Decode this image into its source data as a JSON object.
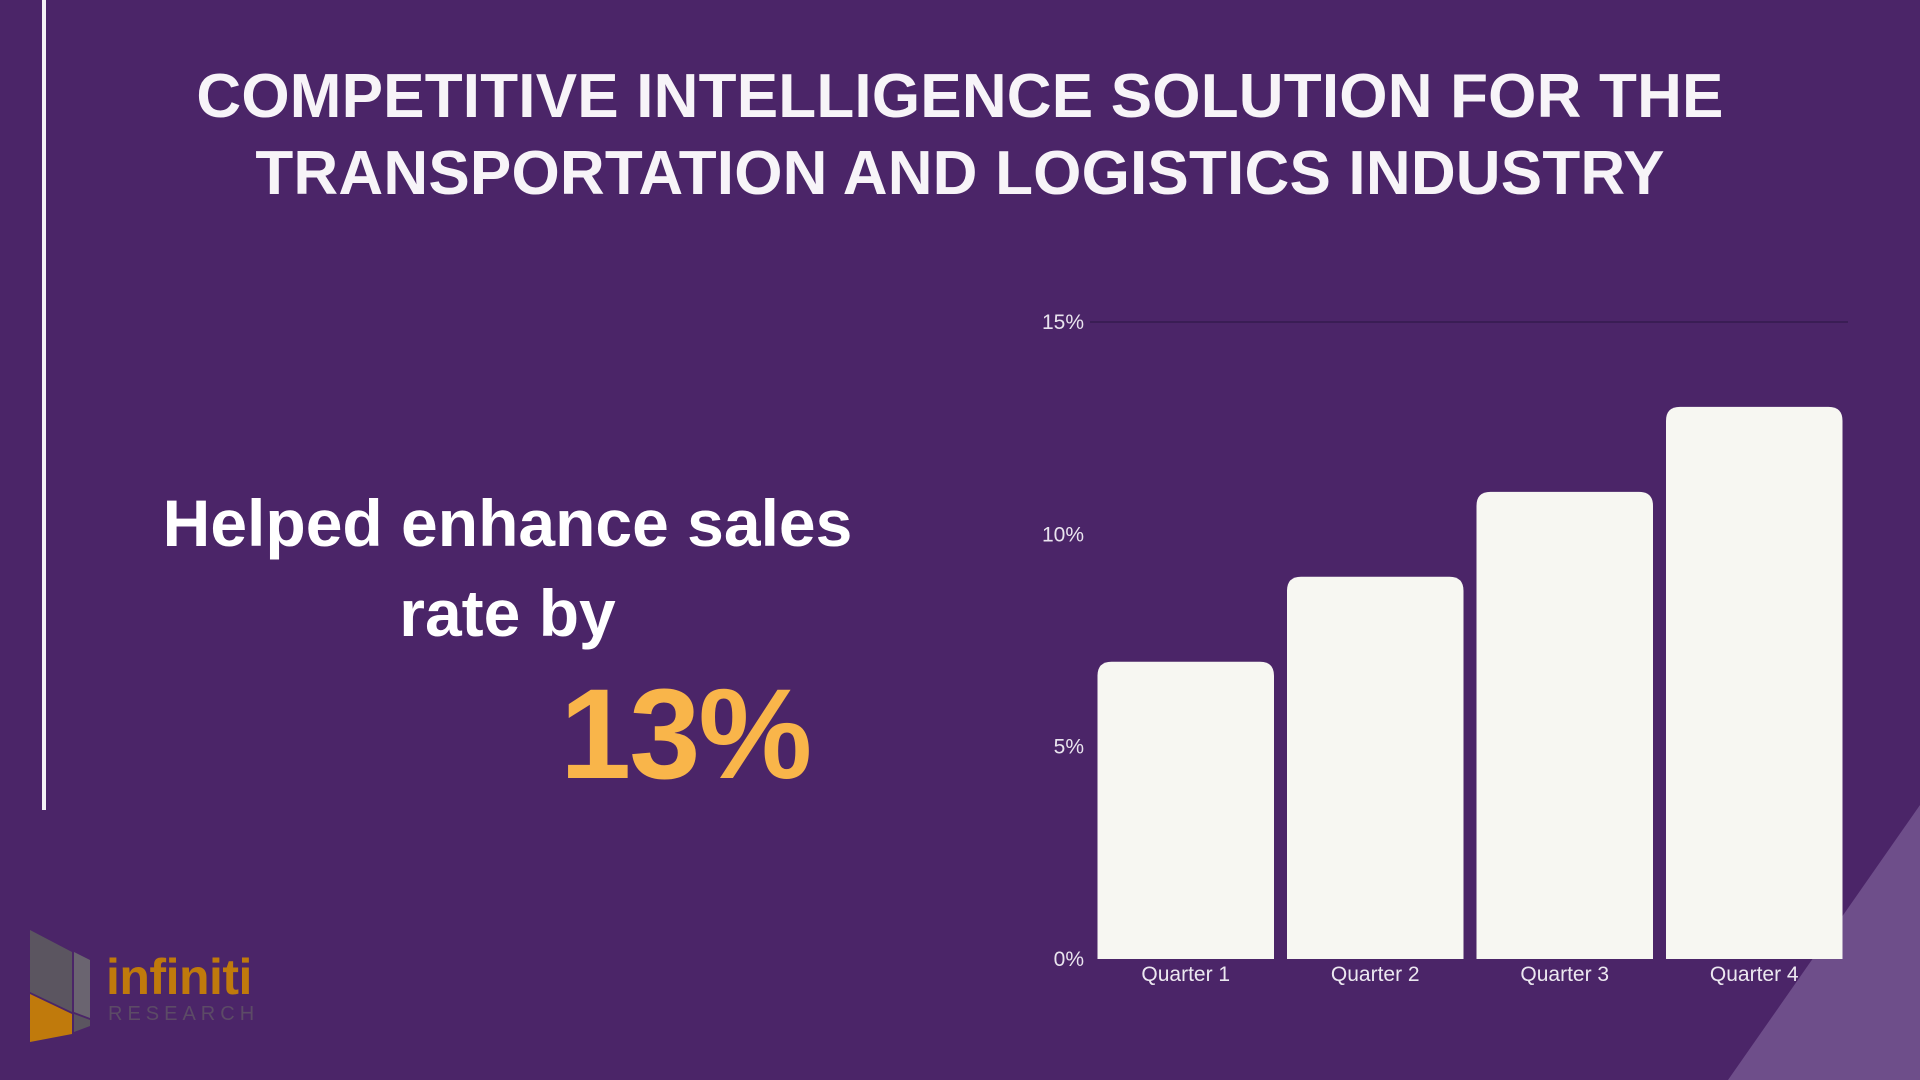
{
  "slide": {
    "title_line1": "COMPETITIVE INTELLIGENCE SOLUTION FOR THE",
    "title_line2": "TRANSPORTATION AND LOGISTICS INDUSTRY",
    "headline_line1": "Helped enhance sales",
    "headline_line2": "rate by",
    "stat": "13%"
  },
  "logo": {
    "word": "infiniti",
    "sub": "RESEARCH"
  },
  "colors": {
    "background": "#4b2568",
    "accent": "#f9b54a",
    "bar": "#f7f7f2",
    "text": "#ffffff",
    "corner": "#6e4e8a"
  },
  "chart_data": {
    "type": "bar",
    "categories": [
      "Quarter 1",
      "Quarter 2",
      "Quarter 3",
      "Quarter 4"
    ],
    "values": [
      7,
      9,
      11,
      13
    ],
    "yticks": [
      "0%",
      "5%",
      "10%",
      "15%"
    ],
    "ylim": [
      0,
      15
    ],
    "grid": true,
    "legend": "none"
  }
}
